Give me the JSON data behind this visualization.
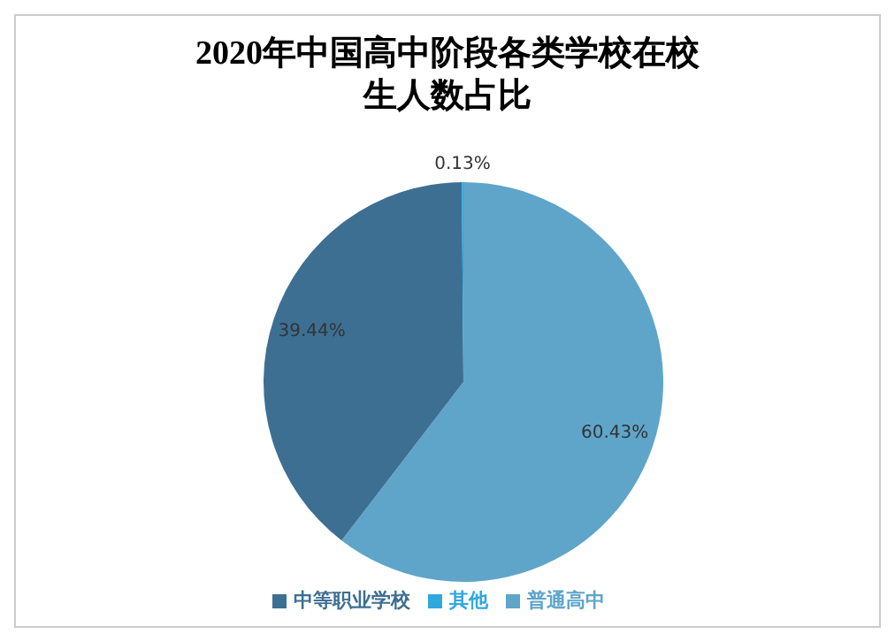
{
  "chart_data": {
    "type": "pie",
    "title": "2020年中国高中阶段各类学校在校生人数占比",
    "categories": [
      "普通高中",
      "中等职业学校",
      "其他"
    ],
    "values": [
      60.43,
      39.44,
      0.13
    ],
    "value_labels": [
      "60.43%",
      "39.44%",
      "0.13%"
    ],
    "colors": [
      "#5fa5c9",
      "#3d6f93",
      "#2fa8e0"
    ],
    "legend": "bottom"
  }
}
